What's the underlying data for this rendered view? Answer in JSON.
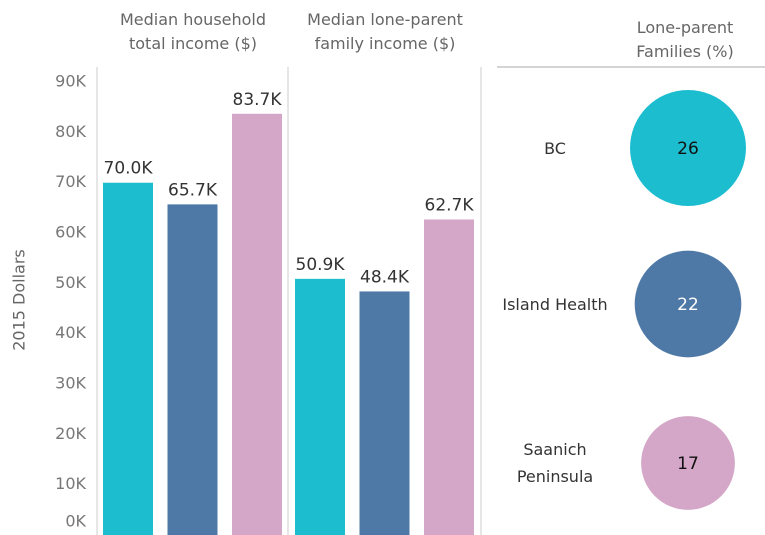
{
  "chart_data": [
    {
      "type": "bar",
      "y_label": "2015 Dollars",
      "ylim": [
        0,
        93000
      ],
      "yticks": [
        {
          "value": 0,
          "label": "0K"
        },
        {
          "value": 10000,
          "label": "10K"
        },
        {
          "value": 20000,
          "label": "20K"
        },
        {
          "value": 30000,
          "label": "30K"
        },
        {
          "value": 40000,
          "label": "40K"
        },
        {
          "value": 50000,
          "label": "50K"
        },
        {
          "value": 60000,
          "label": "60K"
        },
        {
          "value": 70000,
          "label": "70K"
        },
        {
          "value": 80000,
          "label": "80K"
        },
        {
          "value": 90000,
          "label": "90K"
        }
      ],
      "colors": [
        "#1bbdcf",
        "#4e79a7",
        "#d4a6c8"
      ],
      "panels": [
        {
          "title": "Median household total income ($)",
          "values": [
            70000,
            65700,
            83700
          ],
          "value_labels": [
            "70.0K",
            "65.7K",
            "83.7K"
          ]
        },
        {
          "title": "Median lone-parent family income ($)",
          "values": [
            50900,
            48400,
            62700
          ],
          "value_labels": [
            "50.9K",
            "48.4K",
            "62.7K"
          ]
        }
      ]
    },
    {
      "type": "bubble",
      "title": "Lone-parent Families (%)",
      "categories": [
        "BC",
        "Island Health",
        "Saanich Peninsula"
      ],
      "values": [
        26,
        22,
        17
      ],
      "colors": [
        "#1bbdcf",
        "#4e79a7",
        "#d4a6c8"
      ]
    }
  ]
}
